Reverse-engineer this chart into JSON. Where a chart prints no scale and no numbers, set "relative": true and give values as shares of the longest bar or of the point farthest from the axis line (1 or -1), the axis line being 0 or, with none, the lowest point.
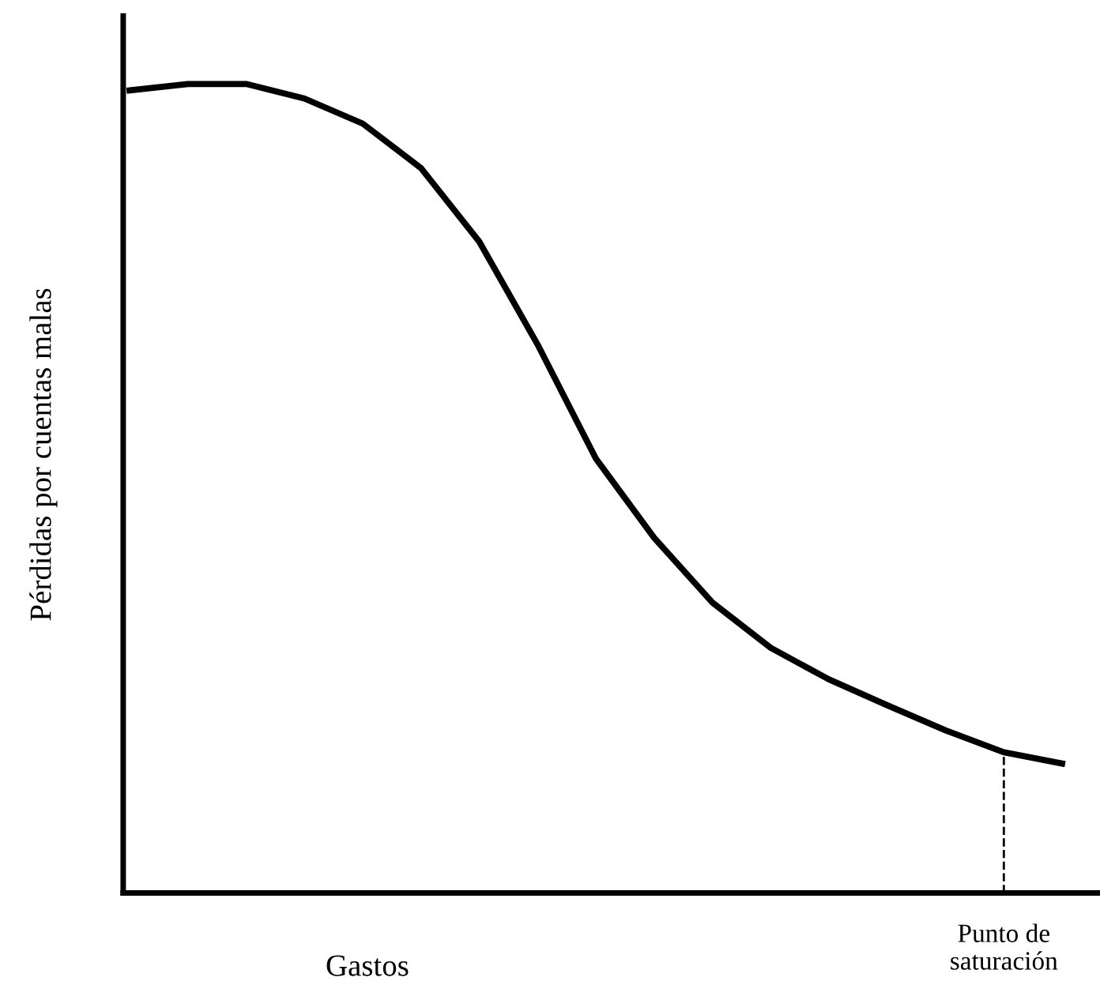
{
  "chart_data": {
    "type": "line",
    "relative": true,
    "xlabel": "Gastos",
    "ylabel": "Pérdidas por cuentas malas",
    "categories": [
      null,
      null,
      null,
      null,
      null,
      null,
      null,
      null,
      null,
      null,
      null,
      null,
      null,
      null,
      null,
      null,
      null
    ],
    "series": [
      {
        "color": "#000000",
        "values": [
          0.992,
          1,
          1,
          0.982,
          0.951,
          0.896,
          0.805,
          0.678,
          0.537,
          0.439,
          0.359,
          0.303,
          0.264,
          0.232,
          0.201,
          0.174,
          0.16
        ]
      }
    ],
    "annotations": [
      "Punto de\nsaturación"
    ],
    "marker": "none",
    "line_style": "solid"
  }
}
